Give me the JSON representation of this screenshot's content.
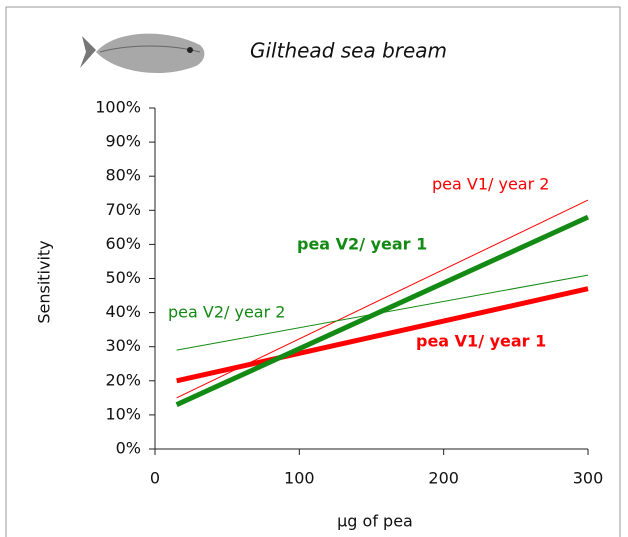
{
  "chart_data": {
    "type": "line",
    "title": "Gilthead sea bream",
    "x_label": "µg of pea",
    "y_label": "Sensitivity",
    "x": [
      15,
      300
    ],
    "series": [
      {
        "name": "pea V1/ year 1",
        "color": "#ff0000",
        "width": 5,
        "values": [
          20,
          47
        ]
      },
      {
        "name": "pea V2/ year 1",
        "color": "#138a13",
        "width": 5,
        "values": [
          13,
          68
        ]
      },
      {
        "name": "pea V1/ year 2",
        "color": "#ff0000",
        "width": 1,
        "values": [
          15,
          73
        ]
      },
      {
        "name": "pea V2/ year 2",
        "color": "#138a13",
        "width": 1,
        "values": [
          29,
          51
        ]
      }
    ],
    "xlim": [
      0,
      300
    ],
    "xticks": [
      0,
      100,
      200,
      300
    ],
    "ylim": [
      0,
      100
    ],
    "yticks": [
      {
        "value": 0,
        "label": "0%"
      },
      {
        "value": 10,
        "label": "10%"
      },
      {
        "value": 20,
        "label": "20%"
      },
      {
        "value": 30,
        "label": "30%"
      },
      {
        "value": 40,
        "label": "40%"
      },
      {
        "value": 50,
        "label": "50%"
      },
      {
        "value": 60,
        "label": "60%"
      },
      {
        "value": 70,
        "label": "70%"
      },
      {
        "value": 80,
        "label": "80%"
      },
      {
        "value": 90,
        "label": "90%"
      },
      {
        "value": 100,
        "label": "100%"
      }
    ],
    "grid": false
  }
}
